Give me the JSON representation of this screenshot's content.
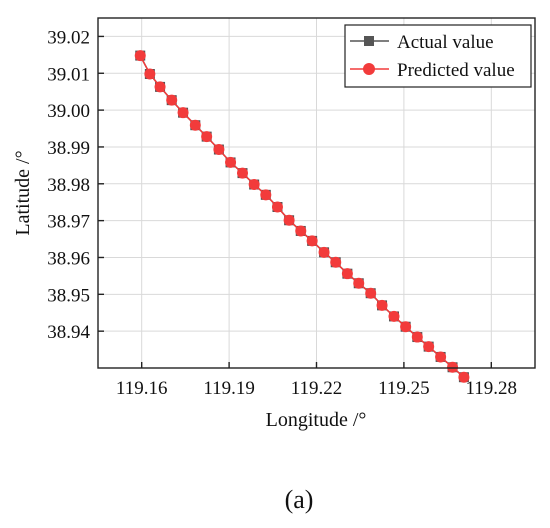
{
  "chart_data": {
    "type": "line",
    "xlabel": "Longitude /°",
    "ylabel": "Latitude /°",
    "xlim": [
      119.145,
      119.295
    ],
    "ylim": [
      38.93,
      39.025
    ],
    "x_ticks": [
      "119.16",
      "119.19",
      "119.22",
      "119.25",
      "119.28"
    ],
    "y_ticks": [
      "38.94",
      "38.95",
      "38.96",
      "38.97",
      "38.98",
      "38.99",
      "39.00",
      "39.01",
      "39.02"
    ],
    "grid": true,
    "legend_position": "top-right",
    "series": [
      {
        "name": "Actual value",
        "color": "#555555",
        "marker": "square",
        "x": [
          119.1595,
          119.1628,
          119.1663,
          119.1703,
          119.1742,
          119.1784,
          119.1823,
          119.1865,
          119.1905,
          119.1946,
          119.1986,
          119.2026,
          119.2066,
          119.2106,
          119.2146,
          119.2185,
          119.2226,
          119.2266,
          119.2306,
          119.2345,
          119.2386,
          119.2425,
          119.2466,
          119.2506,
          119.2546,
          119.2585,
          119.2626,
          119.2667,
          119.2706
        ],
        "y": [
          39.0148,
          39.0098,
          39.0063,
          39.0027,
          38.9993,
          38.9959,
          38.9928,
          38.9893,
          38.9858,
          38.9829,
          38.9798,
          38.977,
          38.9737,
          38.9701,
          38.9672,
          38.9645,
          38.9614,
          38.9587,
          38.9556,
          38.953,
          38.9503,
          38.947,
          38.944,
          38.9412,
          38.9384,
          38.9358,
          38.933,
          38.9302,
          38.9275
        ]
      },
      {
        "name": "Predicted value",
        "color": "#f23b3b",
        "marker": "circle",
        "x": [
          119.1595,
          119.1628,
          119.1663,
          119.1703,
          119.1742,
          119.1784,
          119.1823,
          119.1865,
          119.1905,
          119.1946,
          119.1986,
          119.2026,
          119.2066,
          119.2106,
          119.2146,
          119.2185,
          119.2226,
          119.2266,
          119.2306,
          119.2345,
          119.2386,
          119.2425,
          119.2466,
          119.2506,
          119.2546,
          119.2585,
          119.2626,
          119.2667,
          119.2706
        ],
        "y": [
          39.0148,
          39.0098,
          39.0063,
          39.0027,
          38.9993,
          38.9959,
          38.9928,
          38.9893,
          38.9858,
          38.9829,
          38.9798,
          38.977,
          38.9737,
          38.9701,
          38.9672,
          38.9645,
          38.9614,
          38.9587,
          38.9556,
          38.953,
          38.9503,
          38.947,
          38.944,
          38.9412,
          38.9384,
          38.9358,
          38.933,
          38.9302,
          38.9275
        ]
      }
    ]
  },
  "caption": "(a)"
}
